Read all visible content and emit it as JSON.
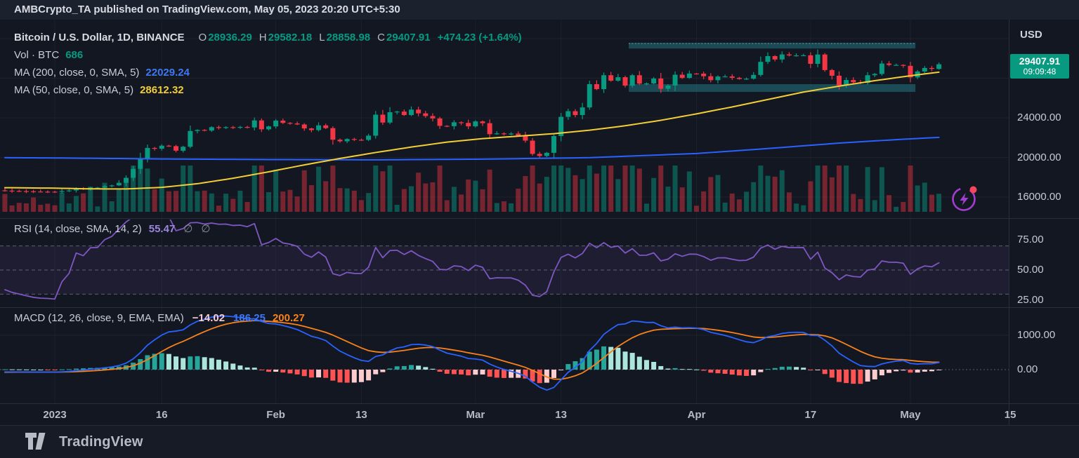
{
  "attribution": {
    "text": "AMBCrypto_TA published on TradingView.com, May 05, 2023 20:20 UTC+5:30"
  },
  "footer": {
    "brand": "TradingView"
  },
  "legend": {
    "main": {
      "title": "Bitcoin / U.S. Dollar, 1D, BINANCE",
      "o_label": "O",
      "o": "28936.29",
      "h_label": "H",
      "h": "29582.18",
      "l_label": "L",
      "l": "28858.98",
      "c_label": "C",
      "c": "29407.91",
      "change": "+474.23 (+1.64%)"
    },
    "volume": {
      "label": "Vol · BTC",
      "value": "686"
    },
    "ma200": {
      "label": "MA (200, close, 0, SMA, 5)",
      "value": "22029.24"
    },
    "ma50": {
      "label": "MA (50, close, 0, SMA, 5)",
      "value": "28612.32"
    },
    "rsi": {
      "label": "RSI (14, close, SMA, 14, 2)",
      "value": "55.47",
      "empty1": "∅",
      "empty2": "∅"
    },
    "macd": {
      "label": "MACD (12, 26, close, 9, EMA, EMA)",
      "hist": "−14.02",
      "macd": "186.25",
      "signal": "200.27"
    }
  },
  "price_axis": {
    "currency_label": "USD",
    "labels": [
      "24000.00",
      "20000.00",
      "16000.00"
    ],
    "values": [
      24000,
      20000,
      16000
    ],
    "badge": {
      "price": "29407.91",
      "countdown": "09:09:48"
    }
  },
  "rsi_axis": {
    "labels": [
      "75.00",
      "50.00",
      "25.00"
    ],
    "values": [
      75,
      50,
      25
    ]
  },
  "macd_axis": {
    "labels": [
      "1000.00",
      "0.00"
    ],
    "values": [
      1000,
      0
    ]
  },
  "colors": {
    "up": "#089981",
    "down": "#f23645",
    "vol_up": "rgba(8,153,129,0.47)",
    "vol_down": "rgba(242,54,69,0.45)",
    "ma200": "#2962ff",
    "ma50": "#f2cf36",
    "rsi_line": "#7e57c2",
    "rsi_fill": "rgba(126,87,194,0.10)",
    "macd_line": "#2962ff",
    "signal_line": "#f7821b",
    "hist_pos_strong": "#26a69a",
    "hist_pos_weak": "#ace5dc",
    "hist_neg_strong": "#ff5252",
    "hist_neg_weak": "#fccbcd",
    "zone_fill": "rgba(35,127,138,0.5)",
    "grid": "rgba(255,255,255,0.045)",
    "separator": "#2a2e39",
    "dashed_level": "rgba(163,166,176,0.5)",
    "badge_bg": "#089981"
  },
  "chart_data": {
    "type": "candlestick",
    "symbol": "Bitcoin / U.S. Dollar",
    "exchange": "BINANCE",
    "interval": "1D",
    "start_date": "2023-01-01",
    "last_candle": {
      "open": 28936.29,
      "high": 29582.18,
      "low": 28858.98,
      "close": 29407.91,
      "change": "+474.23 (+1.64%)"
    },
    "volume_last_btc": 686,
    "ylim_price": [
      14850,
      33850
    ],
    "price_gridlines": [
      32000,
      28000,
      24000,
      20000,
      16000
    ],
    "pre_history_closes": [
      17160,
      17080,
      16980,
      16880,
      16830,
      16790,
      16850,
      16920,
      16880,
      16840,
      16800,
      16760,
      16820,
      16780,
      16750,
      16720,
      16700,
      16740,
      16780,
      16760,
      16730,
      16710,
      16690,
      16720,
      16740,
      16700,
      16670,
      16650,
      16630,
      16610,
      16640,
      16660,
      16680,
      16650,
      16620,
      16600,
      16580,
      16560,
      16550,
      16547
    ],
    "closes_daily": [
      16540,
      16620,
      16670,
      16860,
      16840,
      16950,
      16955,
      17100,
      17180,
      17440,
      17940,
      18850,
      19930,
      20960,
      20880,
      21190,
      21140,
      20680,
      21080,
      22670,
      22780,
      22710,
      23060,
      23010,
      23060,
      23010,
      23080,
      23030,
      23740,
      22840,
      23130,
      23720,
      23490,
      23430,
      23330,
      22930,
      22760,
      23240,
      22960,
      21790,
      21630,
      21860,
      21780,
      21770,
      22200,
      24320,
      23520,
      24570,
      24630,
      24280,
      24830,
      24450,
      24180,
      23940,
      23190,
      23160,
      23550,
      23490,
      23140,
      23640,
      23460,
      22350,
      22430,
      22410,
      22410,
      22200,
      21700,
      20360,
      20150,
      20470,
      22160,
      24100,
      24670,
      24280,
      25050,
      27400,
      26900,
      28300,
      27750,
      28100,
      27250,
      28300,
      27450,
      27470,
      27970,
      26930,
      27260,
      28350,
      28030,
      28470,
      28460,
      28200,
      27800,
      28170,
      28180,
      28040,
      27920,
      27950,
      28330,
      29650,
      30230,
      29890,
      30400,
      30300,
      30300,
      30310,
      29450,
      30390,
      28820,
      28250,
      27270,
      27820,
      27590,
      27520,
      28300,
      28430,
      29480,
      29340,
      29340,
      29250,
      28080,
      28680,
      29030,
      28940,
      29407.91
    ],
    "overlays": {
      "ma200": {
        "period": 200,
        "last": 22029.24,
        "points": [
          [
            -7,
            19980
          ],
          [
            0,
            19950
          ],
          [
            15,
            19850
          ],
          [
            30,
            19790
          ],
          [
            45,
            19760
          ],
          [
            60,
            19830
          ],
          [
            75,
            19980
          ],
          [
            90,
            20400
          ],
          [
            100,
            20900
          ],
          [
            110,
            21450
          ],
          [
            118,
            21800
          ],
          [
            124,
            22029
          ]
        ]
      },
      "ma50": {
        "period": 50,
        "last": 28612.32,
        "points": [
          [
            -7,
            16950
          ],
          [
            0,
            16900
          ],
          [
            5,
            16830
          ],
          [
            10,
            16820
          ],
          [
            15,
            16980
          ],
          [
            20,
            17350
          ],
          [
            25,
            17900
          ],
          [
            30,
            18550
          ],
          [
            35,
            19250
          ],
          [
            40,
            19900
          ],
          [
            45,
            20500
          ],
          [
            50,
            21050
          ],
          [
            55,
            21550
          ],
          [
            60,
            21900
          ],
          [
            65,
            22150
          ],
          [
            70,
            22400
          ],
          [
            75,
            22750
          ],
          [
            80,
            23200
          ],
          [
            85,
            23750
          ],
          [
            90,
            24400
          ],
          [
            95,
            25100
          ],
          [
            100,
            25850
          ],
          [
            105,
            26600
          ],
          [
            110,
            27200
          ],
          [
            115,
            27750
          ],
          [
            120,
            28250
          ],
          [
            124,
            28612
          ]
        ]
      }
    },
    "zones": [
      {
        "from_day": 80.5,
        "to_day": 120.7,
        "price_top": 31575,
        "price_bottom": 31000,
        "dotted_top": true
      },
      {
        "from_day": 80.5,
        "to_day": 120.7,
        "price_top": 27400,
        "price_bottom": 26620,
        "dotted_top": false
      }
    ],
    "rsi": {
      "period": 14,
      "last": 55.47,
      "levels": [
        70,
        50,
        30
      ],
      "axis_ticks": [
        75,
        50,
        25
      ]
    },
    "macd": {
      "fast": 12,
      "slow": 26,
      "signal_period": 9,
      "last_macd": 186.25,
      "last_signal": 200.27,
      "last_hist": -14.02,
      "axis_ticks": [
        1000,
        0
      ]
    },
    "time_ticks": [
      {
        "label": "2023",
        "day": 0
      },
      {
        "label": "16",
        "day": 15
      },
      {
        "label": "Feb",
        "day": 31
      },
      {
        "label": "13",
        "day": 43
      },
      {
        "label": "Mar",
        "day": 59
      },
      {
        "label": "13",
        "day": 71
      },
      {
        "label": "Apr",
        "day": 90
      },
      {
        "label": "17",
        "day": 106
      },
      {
        "label": "May",
        "day": 120
      },
      {
        "label": "15",
        "day": 134
      }
    ]
  }
}
